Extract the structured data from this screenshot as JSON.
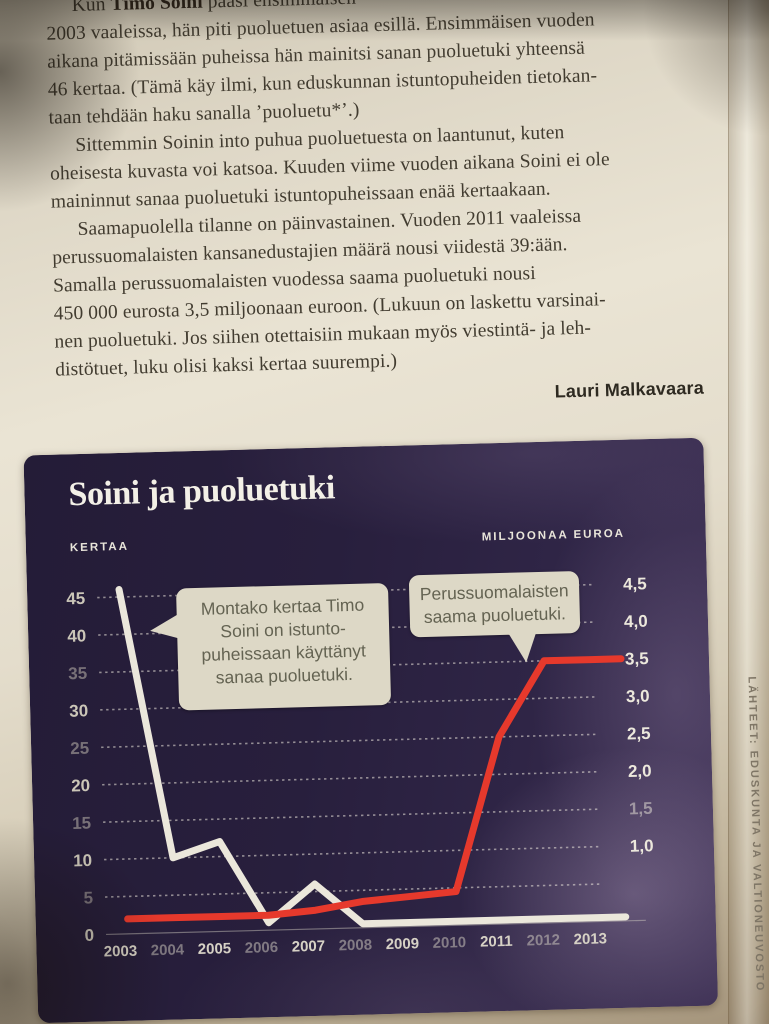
{
  "article": {
    "p1": {
      "line1_pre": "Kun ",
      "line1_bold": "Timo Soini",
      "line1_post": " pääsi ensimmäisen",
      "lines": [
        "2003 vaaleissa, hän piti puoluetuen asiaa esillä. Ensimmäisen vuoden",
        "aikana pitämissään puheissa hän mainitsi sanan puoluetuki yhteensä",
        "46 kertaa. (Tämä käy ilmi, kun eduskunnan istuntopuheiden tietokan-",
        "taan tehdään haku sanalla ’puoluetu*’.)"
      ]
    },
    "p2": {
      "lines": [
        "Sittemmin Soinin into puhua puoluetuesta on laantunut, kuten",
        "oheisesta kuvasta voi katsoa. Kuuden viime vuoden aikana Soini ei ole",
        "maininnut sanaa puoluetuki istuntopuheissaan enää kertaakaan."
      ]
    },
    "p3": {
      "lines": [
        "Saamapuolella tilanne on päinvastainen. Vuoden 2011 vaaleissa",
        "perussuomalaisten kansanedustajien määrä nousi viidestä 39:ään.",
        "Samalla perussuomalaisten vuodessa saama puoluetuki nousi",
        "450 000 eurosta 3,5 miljoonaan euroon. (Lukuun on laskettu varsinai-",
        "nen puoluetuki. Jos siihen otettaisiin mukaan myös viestintä- ja leh-",
        "distötuet, luku olisi kaksi kertaa suurempi.)"
      ]
    },
    "byline": "Lauri Malkavaara"
  },
  "chart_data": {
    "type": "line",
    "title": "Soini ja puoluetuki",
    "x": [
      2003,
      2004,
      2005,
      2006,
      2007,
      2008,
      2009,
      2010,
      2011,
      2012,
      2013
    ],
    "series": [
      {
        "name": "kertaa-soinin-maininnat",
        "axis": "left",
        "color": "#ebe7db",
        "values": [
          46,
          10,
          12,
          1,
          6,
          0,
          0,
          0,
          0,
          0,
          0
        ]
      },
      {
        "name": "puoluetuki-miljoonaa-euroa",
        "axis": "right",
        "color": "#e6392c",
        "values": [
          0.2,
          0.2,
          0.2,
          0.2,
          0.25,
          0.35,
          0.4,
          0.45,
          2.5,
          3.5,
          3.5
        ]
      }
    ],
    "left_axis": {
      "unit": "KERTAA",
      "ticks": [
        0,
        5,
        10,
        15,
        20,
        25,
        30,
        35,
        40,
        45
      ],
      "range": [
        0,
        47
      ],
      "dim_ticks": [
        5,
        15,
        25,
        35
      ]
    },
    "right_axis": {
      "unit": "MILJOONAA EUROA",
      "tick_labels": [
        "4,5",
        "4,0",
        "3,5",
        "3,0",
        "2,5",
        "2,0",
        "1,5",
        "1,0"
      ],
      "range": [
        0,
        4.7
      ],
      "dim_tick_labels": [
        "1,5"
      ]
    },
    "grid": "dotted-horizontal",
    "legend": "none",
    "annotations": [
      {
        "target": "kertaa-line",
        "lines": [
          "Montako kertaa Timo",
          "Soini on istunto-",
          "puheissaan käyttänyt",
          "sanaa puoluetuki."
        ]
      },
      {
        "target": "euro-line",
        "lines": [
          "Perussuomalaisten",
          "saama puoluetuki."
        ]
      }
    ],
    "source": "LÄHTEET: EDUSKUNTA JA VALTIONEUVOSTO"
  }
}
